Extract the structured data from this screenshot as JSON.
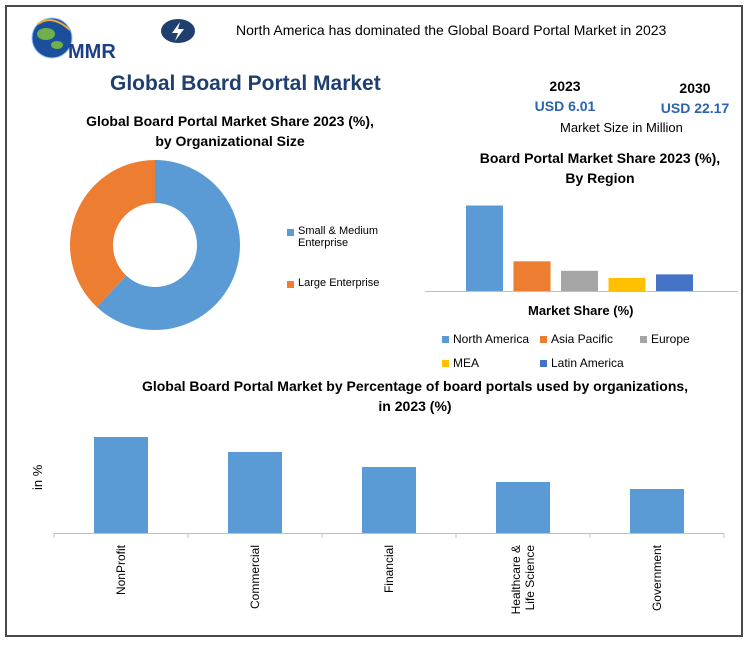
{
  "brand": {
    "name": "MMR"
  },
  "header": {
    "headline": "North America has dominated the Global Board Portal Market in 2023"
  },
  "main": {
    "title": "Global Board Portal Market"
  },
  "market_size": {
    "year_a": "2023",
    "value_a": "USD 6.01",
    "year_b": "2030",
    "value_b": "USD 22.17",
    "note": "Market Size in Million"
  },
  "donut": {
    "title_line1": "Global Board Portal Market Share 2023 (%),",
    "title_line2": "by Organizational Size"
  },
  "region": {
    "title_line1": "Board Portal Market Share 2023 (%),",
    "title_line2": "By Region",
    "axis_label": "Market Share (%)"
  },
  "usage": {
    "title_line1": "Global Board Portal Market by Percentage of board portals used by organizations,",
    "title_line2": "in 2023 (%)",
    "ylabel": "in %"
  },
  "colors": {
    "blue": "#5b9bd5",
    "orange": "#ed7d31",
    "gray": "#a5a5a5",
    "yellow": "#ffc000",
    "dark_blue": "#4472c4",
    "title_navy": "#1f3f6e",
    "value_blue": "#2a64b0"
  },
  "chart_data": [
    {
      "type": "pie",
      "variant": "donut",
      "labels": [
        "Small & Medium Enterprise",
        "Large Enterprise"
      ],
      "values": [
        62,
        38
      ],
      "colors": [
        "#5b9bd5",
        "#ed7d31"
      ],
      "legend": "right"
    },
    {
      "type": "bar",
      "categories": [
        "North America",
        "Asia Pacific",
        "Europe",
        "MEA",
        "Latin America"
      ],
      "values": [
        36,
        12.5,
        8.5,
        5.5,
        7
      ],
      "colors": [
        "#5b9bd5",
        "#ed7d31",
        "#a5a5a5",
        "#ffc000",
        "#4472c4"
      ],
      "xlabel": "Market Share (%)",
      "ylim": [
        0,
        40
      ],
      "grid": false,
      "legend": "bottom"
    },
    {
      "type": "bar",
      "categories": [
        "NonProfit",
        "Commercial",
        "Financial",
        "Healthcare & Life Science",
        "Government"
      ],
      "category_lines": [
        [
          "NonProfit"
        ],
        [
          "Commercial"
        ],
        [
          "Financial"
        ],
        [
          "Healthcare &",
          "Life Science"
        ],
        [
          "Government"
        ]
      ],
      "values": [
        96,
        81,
        66,
        51,
        44
      ],
      "color": "#5b9bd5",
      "ylabel": "in %",
      "ylim": [
        0,
        100
      ],
      "grid": false
    }
  ]
}
